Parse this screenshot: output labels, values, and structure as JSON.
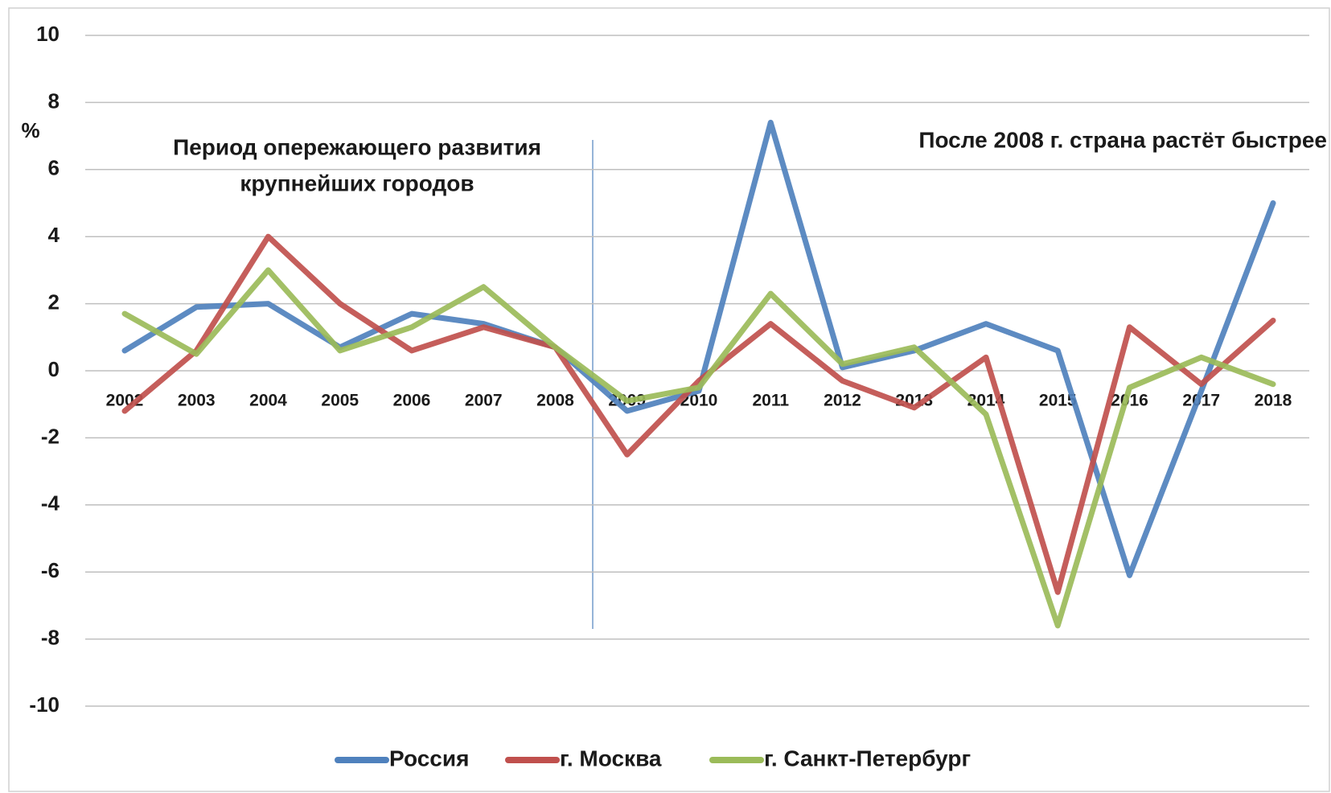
{
  "chart_data": {
    "type": "line",
    "y_label": "%",
    "annotations": [
      [
        "Период опережающего развития",
        "крупнейших городов"
      ],
      [
        "После 2008 г. страна растёт быстрее"
      ]
    ],
    "categories": [
      "2002",
      "2003",
      "2004",
      "2005",
      "2006",
      "2007",
      "2008",
      "2009",
      "2010",
      "2011",
      "2012",
      "2013",
      "2014",
      "2015",
      "2016",
      "2017",
      "2018"
    ],
    "series": [
      {
        "name": "Россия",
        "color": "#4f81bd",
        "values": [
          0.6,
          1.9,
          2.0,
          0.7,
          1.7,
          1.4,
          0.7,
          -1.2,
          -0.6,
          7.4,
          0.1,
          0.6,
          1.4,
          0.6,
          -6.1,
          -0.6,
          5.0
        ]
      },
      {
        "name": "г. Москва",
        "color": "#c0504d",
        "values": [
          -1.2,
          0.6,
          4.0,
          2.0,
          0.6,
          1.3,
          0.7,
          -2.5,
          -0.3,
          1.4,
          -0.3,
          -1.1,
          0.4,
          -6.6,
          1.3,
          -0.4,
          1.5
        ]
      },
      {
        "name": "г. Санкт-Петербург",
        "color": "#9bbb59",
        "values": [
          1.7,
          0.5,
          3.0,
          0.6,
          1.3,
          2.5,
          0.7,
          -0.9,
          -0.5,
          2.3,
          0.2,
          0.7,
          -1.3,
          -7.6,
          -0.5,
          0.4,
          -0.4
        ]
      }
    ],
    "ylim": [
      -10,
      10
    ],
    "yticks": [
      -10,
      -8,
      -6,
      -4,
      -2,
      0,
      2,
      4,
      6,
      8,
      10
    ],
    "grid": true,
    "legend": "bottom"
  }
}
